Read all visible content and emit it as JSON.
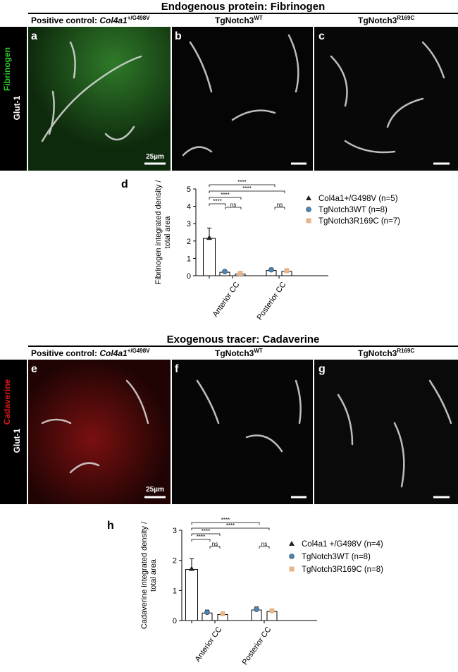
{
  "sections": [
    {
      "title": "Endogenous protein: Fibrinogen",
      "headers": [
        {
          "prefix": "Positive control: ",
          "gene": "Col4a1",
          "sup": "+/G498V"
        },
        {
          "prefix": "Tg",
          "gene": "Notch3",
          "sup": "WT"
        },
        {
          "prefix": "Tg",
          "gene": "Notch3",
          "sup": "R169C"
        }
      ],
      "panel_letters": [
        "a",
        "b",
        "c"
      ],
      "stain_labels": [
        "Fibrinogen",
        "Glut-1"
      ],
      "scale_bar": "25µm"
    },
    {
      "title": "Exogenous tracer: Cadaverine",
      "headers": [
        {
          "prefix": "Positive control: ",
          "gene": "Col4a1",
          "sup": "+/G498V"
        },
        {
          "prefix": "Tg",
          "gene": "Notch3",
          "sup": "WT"
        },
        {
          "prefix": "Tg",
          "gene": "Notch3",
          "sup": "R169C"
        }
      ],
      "panel_letters": [
        "e",
        "f",
        "g"
      ],
      "stain_labels": [
        "Cadaverine",
        "Glut-1"
      ],
      "scale_bar": "25µm"
    }
  ],
  "chart_data": [
    {
      "type": "bar",
      "panel_letter": "d",
      "ylabel": [
        "Fibrinogen integrated density /",
        "total area"
      ],
      "categories": [
        null,
        "Anterior CC",
        "Posterior CC"
      ],
      "series": [
        {
          "name": "Col4a1+/G498V (n=5)",
          "color": "#222222",
          "marker": "triangle",
          "values": [
            2.15,
            null,
            null
          ],
          "errors": [
            0.6,
            null,
            null
          ]
        },
        {
          "name": "TgNotch3WT (n=8)",
          "color": "#4a86b8",
          "marker": "circle",
          "values": [
            null,
            0.2,
            0.3
          ],
          "errors": [
            null,
            0.05,
            0.1
          ]
        },
        {
          "name": "TgNotch3R169C (n=7)",
          "color": "#e8b48a",
          "marker": "square",
          "values": [
            null,
            0.1,
            0.25
          ],
          "errors": [
            null,
            0.04,
            0.06
          ]
        }
      ],
      "ylim": [
        0,
        5
      ],
      "yticks": [
        0,
        1,
        2,
        3,
        4,
        5
      ],
      "annotations": [
        "****",
        "****",
        "****",
        "****",
        "ns",
        "ns"
      ]
    },
    {
      "type": "bar",
      "panel_letter": "h",
      "ylabel": [
        "Cadaverine integrated density /",
        "total area"
      ],
      "categories": [
        null,
        "Anterior CC",
        "Posterior CC"
      ],
      "series": [
        {
          "name": "Col4a1 +/G498V (n=4)",
          "color": "#222222",
          "marker": "triangle",
          "values": [
            1.7,
            null,
            null
          ],
          "errors": [
            0.35,
            null,
            null
          ]
        },
        {
          "name": "TgNotch3WT (n=8)",
          "color": "#4a86b8",
          "marker": "circle",
          "values": [
            null,
            0.25,
            0.35
          ],
          "errors": [
            null,
            0.1,
            0.1
          ]
        },
        {
          "name": "TgNotch3R169C (n=8)",
          "color": "#e8b48a",
          "marker": "square",
          "values": [
            null,
            0.2,
            0.3
          ],
          "errors": [
            null,
            0.05,
            0.06
          ]
        }
      ],
      "ylim": [
        0,
        3
      ],
      "yticks": [
        0,
        1,
        2,
        3
      ],
      "annotations": [
        "****",
        "****",
        "****",
        "****",
        "ns",
        "ns"
      ]
    }
  ]
}
